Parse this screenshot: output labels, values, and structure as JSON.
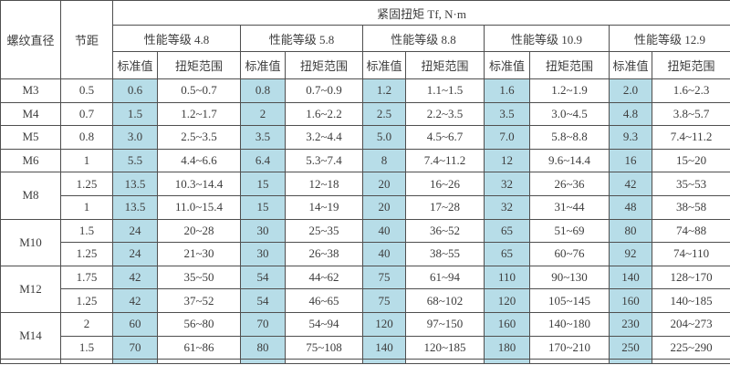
{
  "chart_data": {
    "type": "table",
    "title": "紧固扭矩 Tf, N·m",
    "header": {
      "thread_col": "螺纹直径",
      "pitch_col": "节距",
      "grades": [
        "性能等级 4.8",
        "性能等级 5.8",
        "性能等级 8.8",
        "性能等级 10.9",
        "性能等级 12.9"
      ],
      "sub_columns": [
        "标准值",
        "扭矩范围"
      ]
    },
    "groups": [
      {
        "thread": "M3",
        "rows": [
          {
            "pitch": "0.5",
            "values": [
              "0.6",
              "0.5~0.7",
              "0.8",
              "0.7~0.9",
              "1.2",
              "1.1~1.5",
              "1.6",
              "1.2~1.9",
              "2.0",
              "1.6~2.3"
            ]
          }
        ]
      },
      {
        "thread": "M4",
        "rows": [
          {
            "pitch": "0.7",
            "values": [
              "1.5",
              "1.2~1.7",
              "2",
              "1.6~2.2",
              "2.5",
              "2.2~3.5",
              "3.5",
              "3.0~4.5",
              "4.8",
              "3.8~5.7"
            ]
          }
        ]
      },
      {
        "thread": "M5",
        "rows": [
          {
            "pitch": "0.8",
            "values": [
              "3.0",
              "2.5~3.5",
              "3.5",
              "3.2~4.4",
              "5.0",
              "4.5~6.7",
              "7.0",
              "5.8~8.8",
              "9.3",
              "7.4~11.2"
            ]
          }
        ]
      },
      {
        "thread": "M6",
        "rows": [
          {
            "pitch": "1",
            "values": [
              "5.5",
              "4.4~6.6",
              "6.4",
              "5.3~7.4",
              "8",
              "7.4~11.2",
              "12",
              "9.6~14.4",
              "16",
              "15~20"
            ]
          }
        ]
      },
      {
        "thread": "M8",
        "rows": [
          {
            "pitch": "1.25",
            "values": [
              "13.5",
              "10.3~14.4",
              "15",
              "12~18",
              "20",
              "16~26",
              "32",
              "26~36",
              "42",
              "35~53"
            ]
          },
          {
            "pitch": "1",
            "values": [
              "13.5",
              "11.0~15.4",
              "15",
              "14~19",
              "20",
              "17~28",
              "32",
              "31~44",
              "48",
              "38~58"
            ]
          }
        ]
      },
      {
        "thread": "M10",
        "rows": [
          {
            "pitch": "1.5",
            "values": [
              "24",
              "20~28",
              "30",
              "25~35",
              "40",
              "36~52",
              "65",
              "51~69",
              "80",
              "74~88"
            ]
          },
          {
            "pitch": "1.25",
            "values": [
              "24",
              "21~30",
              "30",
              "26~38",
              "40",
              "38~55",
              "65",
              "60~76",
              "92",
              "74~110"
            ]
          }
        ]
      },
      {
        "thread": "M12",
        "rows": [
          {
            "pitch": "1.75",
            "values": [
              "42",
              "35~50",
              "54",
              "44~62",
              "75",
              "61~94",
              "110",
              "90~130",
              "140",
              "128~170"
            ]
          },
          {
            "pitch": "1.25",
            "values": [
              "42",
              "37~52",
              "54",
              "46~65",
              "75",
              "68~102",
              "120",
              "105~145",
              "160",
              "140~185"
            ]
          }
        ]
      },
      {
        "thread": "M14",
        "rows": [
          {
            "pitch": "2",
            "values": [
              "60",
              "56~80",
              "70",
              "54~94",
              "120",
              "97~150",
              "160",
              "140~180",
              "230",
              "204~273"
            ]
          },
          {
            "pitch": "1.5",
            "values": [
              "70",
              "61~86",
              "80",
              "75~108",
              "140",
              "120~185",
              "180",
              "170~210",
              "250",
              "225~290"
            ]
          }
        ]
      }
    ]
  },
  "colors": {
    "highlight_blue": "#b7dde8",
    "border": "#4f4f4f",
    "text": "#3d3d3d",
    "background": "#ffffff"
  }
}
